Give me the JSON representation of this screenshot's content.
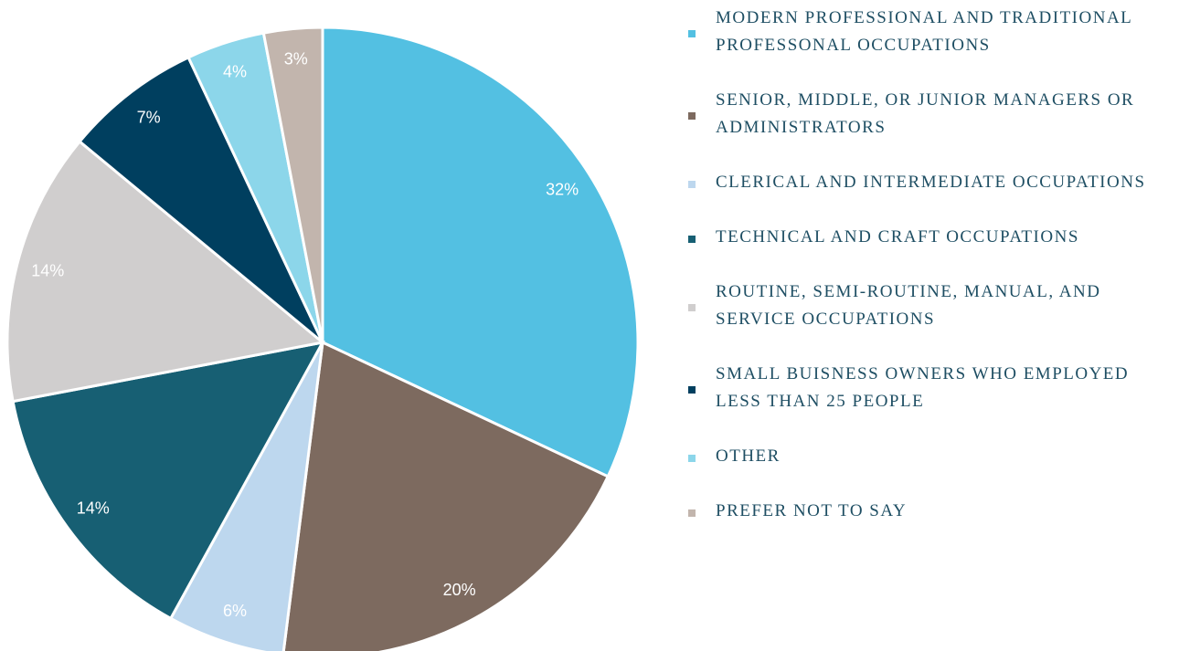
{
  "chart_data": {
    "type": "pie",
    "categories": [
      "MODERN PROFESSIONAL AND TRADITIONAL PROFESSONAL OCCUPATIONS",
      "SENIOR, MIDDLE, OR JUNIOR MANAGERS OR ADMINISTRATORS",
      "CLERICAL AND INTERMEDIATE OCCUPATIONS",
      "TECHNICAL AND CRAFT OCCUPATIONS",
      "ROUTINE, SEMI-ROUTINE, MANUAL, AND SERVICE OCCUPATIONS",
      "SMALL BUISNESS OWNERS WHO EMPLOYED LESS THAN 25 PEOPLE",
      "OTHER",
      "PREFER NOT TO SAY"
    ],
    "values": [
      32,
      20,
      6,
      14,
      14,
      7,
      4,
      3
    ],
    "value_labels": [
      "32%",
      "20%",
      "6%",
      "14%",
      "14%",
      "7%",
      "4%",
      "3%"
    ],
    "colors": [
      "#53c0e2",
      "#7d6a5f",
      "#bdd7ee",
      "#175f73",
      "#d0cece",
      "#003f5f",
      "#8cd6ea",
      "#c2b5ad"
    ],
    "legend": "right"
  }
}
